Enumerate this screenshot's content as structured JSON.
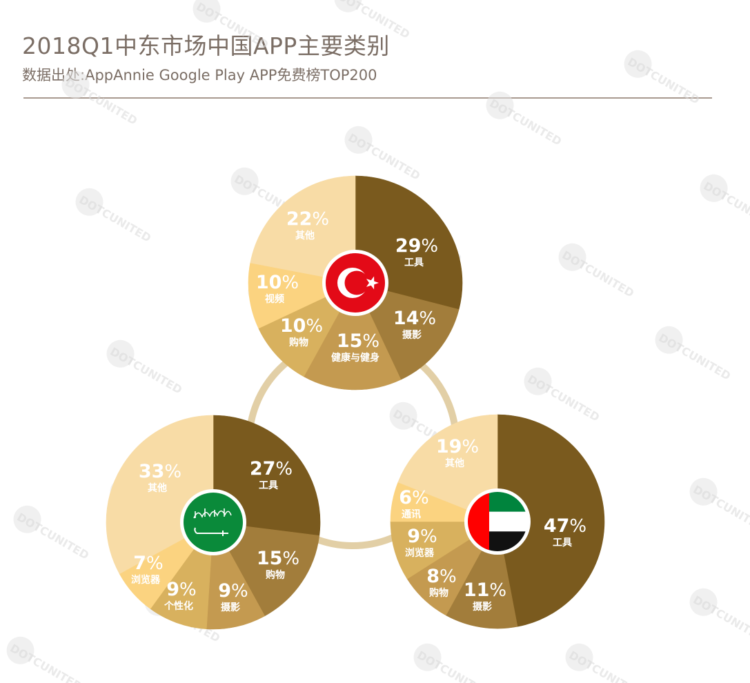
{
  "header": {
    "title": "2018Q1中东市场中国APP主要类别",
    "subtitle": "数据出处:AppAnnie Google Play APP免费榜TOP200"
  },
  "watermark": "DOTCUNITED",
  "colors": {
    "tier1": "#7a5a1e",
    "tier2": "#a27d3b",
    "tier3": "#c49a50",
    "tier4": "#d8b15e",
    "tier5": "#fbd380",
    "tier6": "#f8dca6",
    "connector": "#e2cfa6",
    "background": "#ffffff"
  },
  "chart_data": [
    {
      "type": "pie",
      "country_flag": "turkey-flag",
      "slices": [
        {
          "label": "工具",
          "value": 29,
          "color": "#7a5a1e"
        },
        {
          "label": "摄影",
          "value": 14,
          "color": "#a27d3b"
        },
        {
          "label": "健康与健身",
          "value": 15,
          "color": "#c49a50"
        },
        {
          "label": "购物",
          "value": 10,
          "color": "#d8b15e"
        },
        {
          "label": "视频",
          "value": 10,
          "color": "#fbd380"
        },
        {
          "label": "其他",
          "value": 22,
          "color": "#f8dca6"
        }
      ]
    },
    {
      "type": "pie",
      "country_flag": "saudi-arabia-flag",
      "slices": [
        {
          "label": "工具",
          "value": 27,
          "color": "#7a5a1e"
        },
        {
          "label": "购物",
          "value": 15,
          "color": "#a27d3b"
        },
        {
          "label": "摄影",
          "value": 9,
          "color": "#c49a50"
        },
        {
          "label": "个性化",
          "value": 9,
          "color": "#d8b15e"
        },
        {
          "label": "浏览器",
          "value": 7,
          "color": "#fbd380"
        },
        {
          "label": "其他",
          "value": 33,
          "color": "#f8dca6"
        }
      ]
    },
    {
      "type": "pie",
      "country_flag": "uae-flag",
      "slices": [
        {
          "label": "工具",
          "value": 47,
          "color": "#7a5a1e"
        },
        {
          "label": "摄影",
          "value": 11,
          "color": "#a27d3b"
        },
        {
          "label": "购物",
          "value": 8,
          "color": "#c49a50"
        },
        {
          "label": "浏览器",
          "value": 9,
          "color": "#d8b15e"
        },
        {
          "label": "通讯",
          "value": 6,
          "color": "#fbd380"
        },
        {
          "label": "其他",
          "value": 19,
          "color": "#f8dca6"
        }
      ]
    }
  ]
}
